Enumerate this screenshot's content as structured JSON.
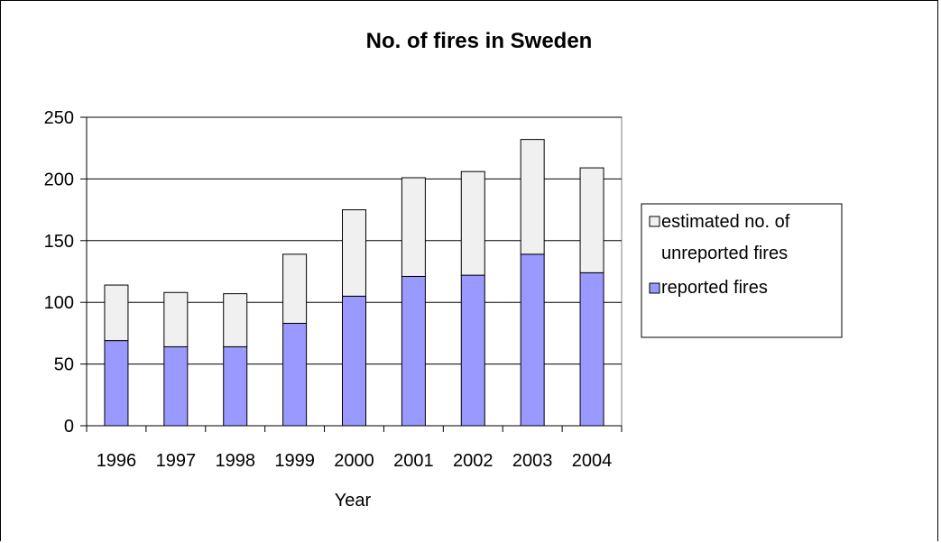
{
  "chart_data": {
    "type": "bar",
    "stacked": true,
    "title": "No. of fires in Sweden",
    "xlabel": "Year",
    "ylabel": "",
    "categories": [
      "1996",
      "1997",
      "1998",
      "1999",
      "2000",
      "2001",
      "2002",
      "2003",
      "2004"
    ],
    "series": [
      {
        "name": "reported fires",
        "color": "#9999ff",
        "values": [
          69,
          64,
          64,
          83,
          105,
          121,
          122,
          139,
          124
        ]
      },
      {
        "name": "estimated no. of unreported fires",
        "color": "#f0f0f0",
        "values": [
          45,
          44,
          43,
          56,
          70,
          80,
          84,
          93,
          85
        ]
      }
    ],
    "legend_lines": {
      "unreported": [
        "estimated no. of",
        "unreported fires"
      ],
      "reported": [
        "reported fires"
      ]
    },
    "yticks": [
      "0",
      "50",
      "100",
      "150",
      "200",
      "250"
    ],
    "ylim": [
      0,
      250
    ],
    "grid": true,
    "legend_position": "right"
  }
}
